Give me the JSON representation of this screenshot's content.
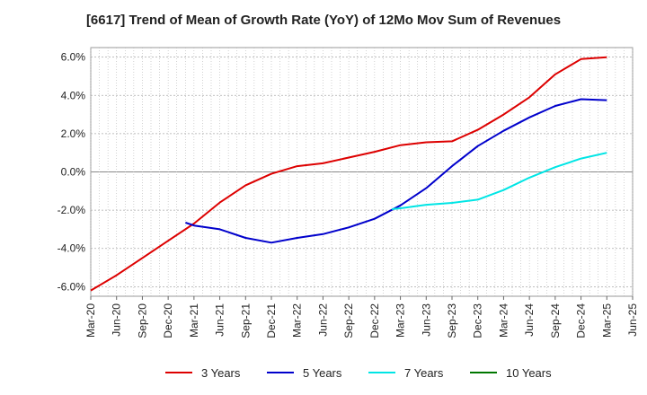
{
  "chart_data": {
    "type": "line",
    "title": "[6617]  Trend of Mean of Growth Rate (YoY) of 12Mo Mov Sum of Revenues",
    "xlabel": "",
    "ylabel": "",
    "x_ticks": [
      "Mar-20",
      "Jun-20",
      "Sep-20",
      "Dec-20",
      "Mar-21",
      "Jun-21",
      "Sep-21",
      "Dec-21",
      "Mar-22",
      "Jun-22",
      "Sep-22",
      "Dec-22",
      "Mar-23",
      "Jun-23",
      "Sep-23",
      "Dec-23",
      "Mar-24",
      "Jun-24",
      "Sep-24",
      "Dec-24",
      "Mar-25",
      "Jun-25"
    ],
    "y_ticks": [
      "6.0%",
      "4.0%",
      "2.0%",
      "0.0%",
      "-2.0%",
      "-4.0%",
      "-6.0%"
    ],
    "y_tick_values": [
      6,
      4,
      2,
      0,
      -2,
      -4,
      -6
    ],
    "ylim": [
      -6.5,
      6.5
    ],
    "x_range_index": [
      0,
      21
    ],
    "grid": true,
    "legend_position": "bottom",
    "series": [
      {
        "name": "3 Years",
        "color": "#dd0000",
        "points": [
          [
            0,
            -6.2
          ],
          [
            1,
            -5.4
          ],
          [
            2,
            -4.5
          ],
          [
            3,
            -3.6
          ],
          [
            4,
            -2.7
          ],
          [
            5,
            -1.6
          ],
          [
            6,
            -0.7
          ],
          [
            7,
            -0.1
          ],
          [
            8,
            0.3
          ],
          [
            9,
            0.45
          ],
          [
            10,
            0.75
          ],
          [
            11,
            1.05
          ],
          [
            12,
            1.4
          ],
          [
            13,
            1.55
          ],
          [
            14,
            1.6
          ],
          [
            15,
            2.2
          ],
          [
            16,
            3.0
          ],
          [
            17,
            3.9
          ],
          [
            18,
            5.1
          ],
          [
            19,
            5.9
          ],
          [
            20,
            6.0
          ]
        ]
      },
      {
        "name": "5 Years",
        "color": "#0000cc",
        "points": [
          [
            3.67,
            -2.65
          ],
          [
            4,
            -2.8
          ],
          [
            5,
            -3.0
          ],
          [
            6,
            -3.45
          ],
          [
            7,
            -3.7
          ],
          [
            8,
            -3.45
          ],
          [
            9,
            -3.25
          ],
          [
            10,
            -2.9
          ],
          [
            11,
            -2.45
          ],
          [
            12,
            -1.75
          ],
          [
            13,
            -0.85
          ],
          [
            14,
            0.3
          ],
          [
            15,
            1.35
          ],
          [
            16,
            2.15
          ],
          [
            17,
            2.85
          ],
          [
            18,
            3.45
          ],
          [
            19,
            3.8
          ],
          [
            20,
            3.75
          ]
        ]
      },
      {
        "name": "7 Years",
        "color": "#00e5e5",
        "points": [
          [
            11.67,
            -1.95
          ],
          [
            12,
            -1.9
          ],
          [
            13,
            -1.72
          ],
          [
            14,
            -1.62
          ],
          [
            15,
            -1.45
          ],
          [
            16,
            -0.95
          ],
          [
            17,
            -0.3
          ],
          [
            18,
            0.25
          ],
          [
            19,
            0.7
          ],
          [
            20,
            1.0
          ]
        ]
      },
      {
        "name": "10 Years",
        "color": "#007700",
        "points": []
      }
    ]
  }
}
